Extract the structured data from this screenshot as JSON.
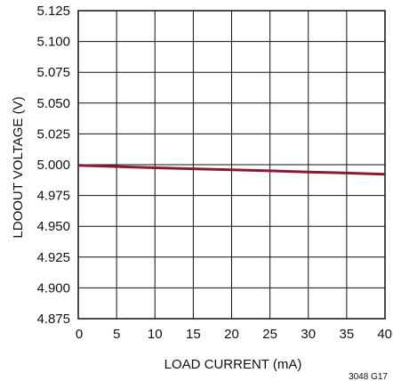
{
  "chart_data": {
    "type": "line",
    "title": "",
    "xlabel": "LOAD CURRENT (mA)",
    "ylabel": "LDOOUT VOLTAGE (V)",
    "xlim": [
      0,
      40
    ],
    "ylim": [
      4.875,
      5.125
    ],
    "x_ticks": [
      "0",
      "5",
      "10",
      "15",
      "20",
      "25",
      "30",
      "35",
      "40"
    ],
    "y_ticks": [
      "5.125",
      "5.100",
      "5.075",
      "5.050",
      "5.025",
      "5.000",
      "4.975",
      "4.950",
      "4.925",
      "4.900",
      "4.875"
    ],
    "grid": true,
    "series": [
      {
        "color": "#8b1a30",
        "x": [
          0,
          5,
          10,
          15,
          20,
          25,
          30,
          35,
          40
        ],
        "y": [
          4.9995,
          4.9985,
          4.9975,
          4.9967,
          4.9958,
          4.995,
          4.9941,
          4.9932,
          4.9923
        ]
      }
    ],
    "annotation": "3048 G17"
  }
}
